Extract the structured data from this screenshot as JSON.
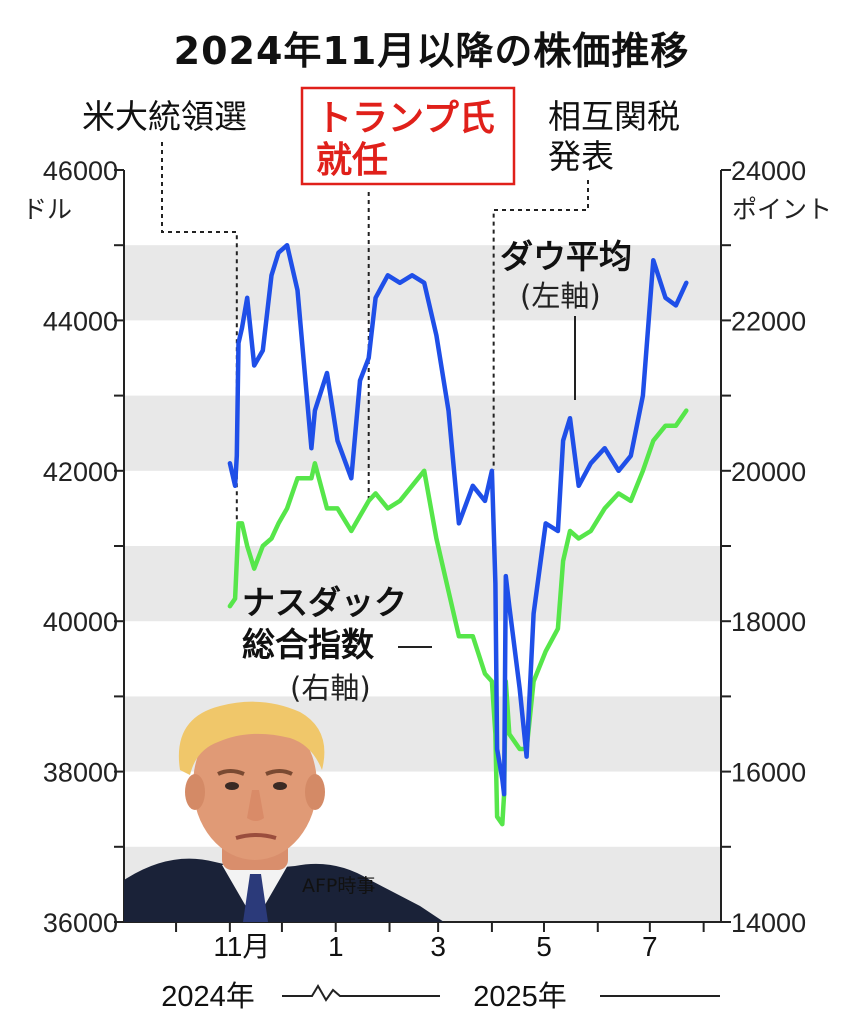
{
  "title": "2024年11月以降の株価推移",
  "chart_data": {
    "type": "line",
    "left_axis": {
      "unit": "ドル",
      "ylim": [
        36000,
        46000
      ],
      "ticks": [
        "46000",
        "44000",
        "42000",
        "40000",
        "38000",
        "36000"
      ]
    },
    "right_axis": {
      "unit": "ポイント",
      "ylim": [
        14000,
        24000
      ],
      "ticks": [
        "24000",
        "22000",
        "20000",
        "18000",
        "16000",
        "14000"
      ]
    },
    "x_ticks": [
      "11月",
      "1",
      "3",
      "5",
      "7"
    ],
    "x_years": [
      "2024年",
      "2025年"
    ],
    "series": [
      {
        "name": "ダウ平均",
        "sub": "(左軸)",
        "axis": "left",
        "color": "#1f4fe8",
        "x": [
          "2024-11-01",
          "2024-11-04",
          "2024-11-05",
          "2024-11-06",
          "2024-11-08",
          "2024-11-11",
          "2024-11-15",
          "2024-11-20",
          "2024-11-25",
          "2024-11-29",
          "2024-12-04",
          "2024-12-10",
          "2024-12-18",
          "2024-12-20",
          "2024-12-27",
          "2025-01-02",
          "2025-01-10",
          "2025-01-15",
          "2025-01-20",
          "2025-01-24",
          "2025-01-31",
          "2025-02-07",
          "2025-02-14",
          "2025-02-21",
          "2025-02-28",
          "2025-03-07",
          "2025-03-13",
          "2025-03-21",
          "2025-03-28",
          "2025-04-01",
          "2025-04-03",
          "2025-04-04",
          "2025-04-07",
          "2025-04-08",
          "2025-04-09",
          "2025-04-11",
          "2025-04-17",
          "2025-04-21",
          "2025-04-25",
          "2025-05-02",
          "2025-05-09",
          "2025-05-12",
          "2025-05-16",
          "2025-05-21",
          "2025-05-28",
          "2025-06-05",
          "2025-06-13",
          "2025-06-20",
          "2025-06-27",
          "2025-07-03",
          "2025-07-10",
          "2025-07-16",
          "2025-07-22"
        ],
        "values": [
          42100,
          41800,
          42200,
          43700,
          43900,
          44300,
          43400,
          43600,
          44600,
          44900,
          45000,
          44400,
          42300,
          42800,
          43300,
          42400,
          41900,
          43200,
          43500,
          44300,
          44600,
          44500,
          44600,
          44500,
          43800,
          42800,
          41300,
          41800,
          41600,
          42000,
          40500,
          38300,
          37900,
          37700,
          40600,
          40200,
          39100,
          38200,
          40100,
          41300,
          41200,
          42400,
          42700,
          41800,
          42100,
          42300,
          42000,
          42200,
          43000,
          44800,
          44300,
          44200,
          44500
        ]
      },
      {
        "name": "ナスダック総合指数",
        "label_lines": [
          "ナスダック",
          "総合指数"
        ],
        "sub": "(右軸)",
        "axis": "right",
        "color": "#56e64a",
        "x": [
          "2024-11-01",
          "2024-11-04",
          "2024-11-05",
          "2024-11-06",
          "2024-11-08",
          "2024-11-11",
          "2024-11-15",
          "2024-11-20",
          "2024-11-25",
          "2024-11-29",
          "2024-12-04",
          "2024-12-10",
          "2024-12-18",
          "2024-12-20",
          "2024-12-27",
          "2025-01-02",
          "2025-01-10",
          "2025-01-15",
          "2025-01-20",
          "2025-01-24",
          "2025-01-31",
          "2025-02-07",
          "2025-02-14",
          "2025-02-21",
          "2025-02-28",
          "2025-03-07",
          "2025-03-13",
          "2025-03-21",
          "2025-03-28",
          "2025-04-01",
          "2025-04-03",
          "2025-04-04",
          "2025-04-07",
          "2025-04-08",
          "2025-04-09",
          "2025-04-11",
          "2025-04-17",
          "2025-04-21",
          "2025-04-25",
          "2025-05-02",
          "2025-05-09",
          "2025-05-12",
          "2025-05-16",
          "2025-05-21",
          "2025-05-28",
          "2025-06-05",
          "2025-06-13",
          "2025-06-20",
          "2025-06-27",
          "2025-07-03",
          "2025-07-10",
          "2025-07-16",
          "2025-07-22"
        ],
        "values": [
          18200,
          18300,
          18800,
          19300,
          19300,
          19000,
          18700,
          19000,
          19100,
          19300,
          19500,
          19900,
          19900,
          20100,
          19500,
          19500,
          19200,
          19400,
          19600,
          19700,
          19500,
          19600,
          19800,
          20000,
          19100,
          18400,
          17800,
          17800,
          17300,
          17200,
          16500,
          15400,
          15300,
          15700,
          17200,
          16500,
          16300,
          16300,
          17200,
          17600,
          17900,
          18800,
          19200,
          19100,
          19200,
          19500,
          19700,
          19600,
          20000,
          20400,
          20600,
          20600,
          20800
        ]
      }
    ],
    "annotations": [
      {
        "lines": [
          "米大統領選"
        ],
        "date": "2024-11-05",
        "style": "plain"
      },
      {
        "lines": [
          "トランプ氏",
          "就任"
        ],
        "date": "2025-01-20",
        "style": "red-box"
      },
      {
        "lines": [
          "相互関税",
          "発表"
        ],
        "date": "2025-04-02",
        "style": "plain"
      }
    ],
    "grid": "alternating-gray-bands"
  },
  "credit": "AFP時事"
}
